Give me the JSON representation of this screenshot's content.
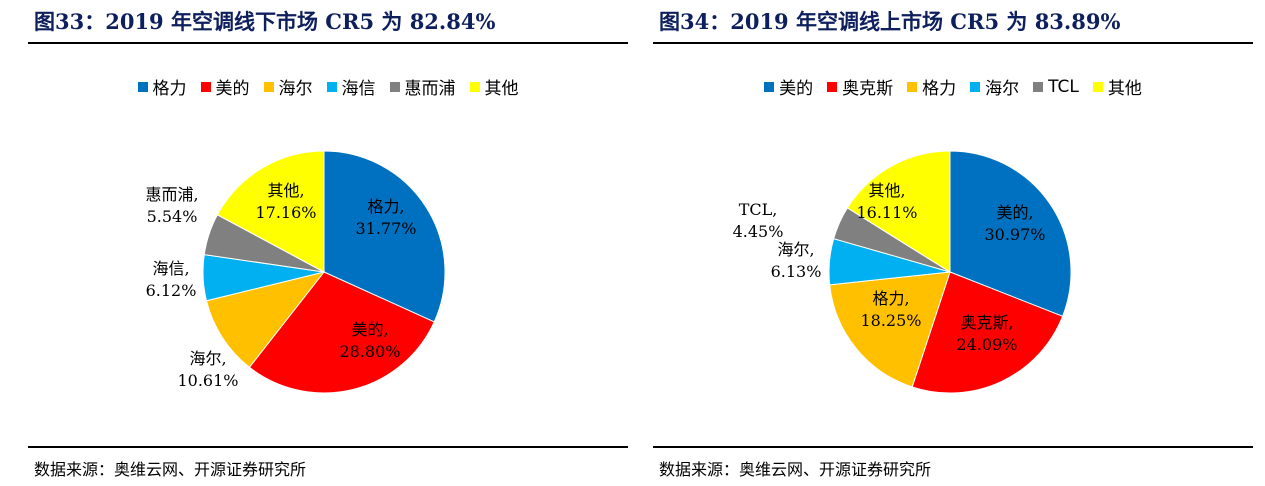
{
  "colors": {
    "title": "#0d1f5c",
    "blue": "#0070c0",
    "red": "#ff0000",
    "orange": "#ffc000",
    "lightblue": "#00b0f0",
    "gray": "#808080",
    "yellow": "#ffff00"
  },
  "left": {
    "title": "图33：2019 年空调线下市场 CR5 为 82.84%",
    "source": "数据来源：奥维云网、开源证券研究所",
    "legend": [
      {
        "label": "格力",
        "color": "#0070c0"
      },
      {
        "label": "美的",
        "color": "#ff0000"
      },
      {
        "label": "海尔",
        "color": "#ffc000"
      },
      {
        "label": "海信",
        "color": "#00b0f0"
      },
      {
        "label": "惠而浦",
        "color": "#808080"
      },
      {
        "label": "其他",
        "color": "#ffff00"
      }
    ]
  },
  "right": {
    "title": "图34：2019 年空调线上市场 CR5 为 83.89%",
    "source": "数据来源：奥维云网、开源证券研究所",
    "legend": [
      {
        "label": "美的",
        "color": "#0070c0"
      },
      {
        "label": "奥克斯",
        "color": "#ff0000"
      },
      {
        "label": "格力",
        "color": "#ffc000"
      },
      {
        "label": "海尔",
        "color": "#00b0f0"
      },
      {
        "label": "TCL",
        "color": "#808080"
      },
      {
        "label": "其他",
        "color": "#ffff00"
      }
    ]
  },
  "chart_data": [
    {
      "type": "pie",
      "title": "2019 年空调线下市场 CR5 为 82.84%",
      "categories": [
        "格力",
        "美的",
        "海尔",
        "海信",
        "惠而浦",
        "其他"
      ],
      "values": [
        31.77,
        28.8,
        10.61,
        6.12,
        5.54,
        17.16
      ],
      "labels": [
        "格力,|31.77%",
        "美的,|28.80%",
        "海尔,|10.61%",
        "海信,|6.12%",
        "惠而浦,|5.54%",
        "其他,|17.16%"
      ],
      "colors": [
        "#0070c0",
        "#ff0000",
        "#ffc000",
        "#00b0f0",
        "#808080",
        "#ffff00"
      ],
      "legend_position": "top"
    },
    {
      "type": "pie",
      "title": "2019 年空调线上市场 CR5 为 83.89%",
      "categories": [
        "美的",
        "奥克斯",
        "格力",
        "海尔",
        "TCL",
        "其他"
      ],
      "values": [
        30.97,
        24.09,
        18.25,
        6.13,
        4.45,
        16.11
      ],
      "labels": [
        "美的,|30.97%",
        "奥克斯,|24.09%",
        "格力,|18.25%",
        "海尔,|6.13%",
        "TCL,|4.45%",
        "其他,|16.11%"
      ],
      "colors": [
        "#0070c0",
        "#ff0000",
        "#ffc000",
        "#00b0f0",
        "#808080",
        "#ffff00"
      ],
      "legend_position": "top"
    }
  ]
}
